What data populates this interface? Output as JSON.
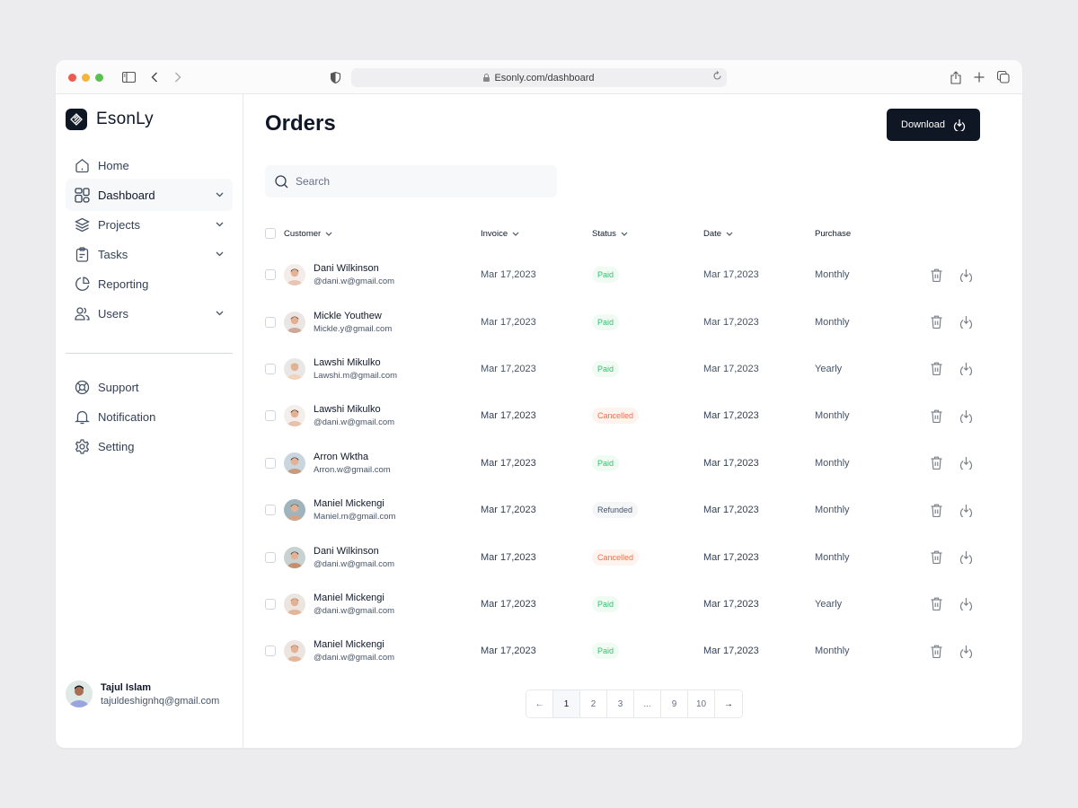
{
  "browser": {
    "url": "Esonly.com/dashboard"
  },
  "brand": {
    "name": "EsonLy"
  },
  "sidebar": {
    "items": [
      {
        "label": "Home",
        "icon": "home-icon",
        "has_chevron": false,
        "active": false
      },
      {
        "label": "Dashboard",
        "icon": "grid-icon",
        "has_chevron": true,
        "active": true
      },
      {
        "label": "Projects",
        "icon": "layers-icon",
        "has_chevron": true,
        "active": false
      },
      {
        "label": "Tasks",
        "icon": "clipboard-icon",
        "has_chevron": true,
        "active": false
      },
      {
        "label": "Reporting",
        "icon": "pie-chart-icon",
        "has_chevron": false,
        "active": false
      },
      {
        "label": "Users",
        "icon": "users-icon",
        "has_chevron": true,
        "active": false
      }
    ],
    "secondary": [
      {
        "label": "Support",
        "icon": "lifebuoy-icon"
      },
      {
        "label": "Notification",
        "icon": "bell-icon"
      },
      {
        "label": "Setting",
        "icon": "gear-icon"
      }
    ],
    "user": {
      "name": "Tajul Islam",
      "email": "tajuldeshignhq@gmail.com"
    }
  },
  "main": {
    "title": "Orders",
    "download_label": "Download",
    "search_placeholder": "Search",
    "table": {
      "columns": {
        "customer": "Customer",
        "invoice": "Invoice",
        "status": "Status",
        "date": "Date",
        "purchase": "Purchase"
      },
      "rows": [
        {
          "name": "Dani Wilkinson",
          "email": "@dani.w@gmail.com",
          "invoice": "Mar 17,2023",
          "status": "Paid",
          "date": "Mar 17,2023",
          "purchase": "Monthly"
        },
        {
          "name": "Mickle Youthew",
          "email": "Mickle.y@gmail.com",
          "invoice": "Mar 17,2023",
          "status": "Paid",
          "date": "Mar 17,2023",
          "purchase": "Monthly"
        },
        {
          "name": "Lawshi Mikulko",
          "email": "Lawshi.m@gmail.com",
          "invoice": "Mar 17,2023",
          "status": "Paid",
          "date": "Mar 17,2023",
          "purchase": "Yearly"
        },
        {
          "name": "Lawshi Mikulko",
          "email": "@dani.w@gmail.com",
          "invoice": "Mar 17,2023",
          "status": "Cancelled",
          "date": "Mar 17,2023",
          "purchase": "Monthly"
        },
        {
          "name": "Arron Wktha",
          "email": "Arron.w@gmail.com",
          "invoice": "Mar 17,2023",
          "status": "Paid",
          "date": "Mar 17,2023",
          "purchase": "Monthly"
        },
        {
          "name": "Maniel Mickengi",
          "email": "Maniel.m@gmail.com",
          "invoice": "Mar 17,2023",
          "status": "Refunded",
          "date": "Mar 17,2023",
          "purchase": "Monthly"
        },
        {
          "name": "Dani Wilkinson",
          "email": "@dani.w@gmail.com",
          "invoice": "Mar 17,2023",
          "status": "Cancelled",
          "date": "Mar 17,2023",
          "purchase": "Monthly"
        },
        {
          "name": "Maniel Mickengi",
          "email": "@dani.w@gmail.com",
          "invoice": "Mar 17,2023",
          "status": "Paid",
          "date": "Mar 17,2023",
          "purchase": "Yearly"
        },
        {
          "name": "Maniel Mickengi",
          "email": "@dani.w@gmail.com",
          "invoice": "Mar 17,2023",
          "status": "Paid",
          "date": "Mar 17,2023",
          "purchase": "Monthly"
        }
      ]
    },
    "pagination": {
      "prev": "←",
      "pages": [
        "1",
        "2",
        "3",
        "...",
        "9",
        "10"
      ],
      "current": "1",
      "next": "→"
    }
  },
  "colors": {
    "primary": "#0f1724",
    "paid": "#33c072",
    "cancelled": "#f06f46",
    "refunded": "#475467"
  }
}
